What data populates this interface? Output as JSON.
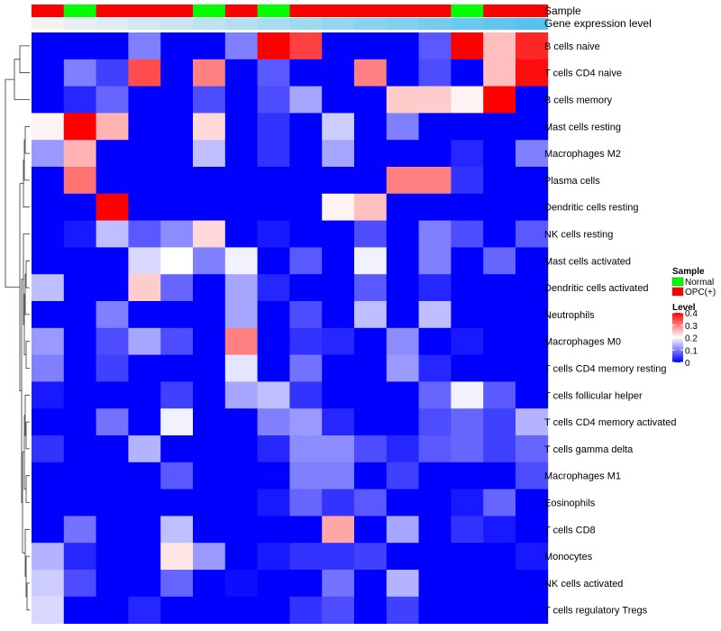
{
  "chart_data": {
    "type": "heatmap",
    "title": "",
    "row_labels": [
      "B cells naive",
      "T cells CD4 naive",
      "B cells memory",
      "Mast cells resting",
      "Macrophages M2",
      "Plasma cells",
      "Dendritic cells resting",
      "NK cells resting",
      "Mast cells activated",
      "Dendritic cells activated",
      "Neutrophils",
      "Macrophages M0",
      "T cells CD4 memory resting",
      "T cells follicular helper",
      "T cells CD4 memory activated",
      "T cells gamma delta",
      "Macrophages M1",
      "Eosinophils",
      "T cells CD8",
      "Monocytes",
      "NK cells activated",
      "T cells regulatory  Tregs"
    ],
    "column_annotations": {
      "sample_track_label": "Sample",
      "expression_track_label": "Gene expression level",
      "sample": [
        "OPC(+)",
        "Normal",
        "OPC(+)",
        "OPC(+)",
        "OPC(+)",
        "Normal",
        "OPC(+)",
        "Normal",
        "OPC(+)",
        "OPC(+)",
        "OPC(+)",
        "OPC(+)",
        "OPC(+)",
        "Normal",
        "OPC(+)",
        "OPC(+)"
      ],
      "gene_expression_level": [
        0.0,
        0.07,
        0.13,
        0.2,
        0.27,
        0.33,
        0.4,
        0.47,
        0.53,
        0.6,
        0.67,
        0.73,
        0.8,
        0.87,
        0.93,
        1.0
      ]
    },
    "values": [
      [
        0.0,
        0.0,
        0.0,
        0.1,
        0.0,
        0.0,
        0.1,
        0.4,
        0.35,
        0.0,
        0.0,
        0.0,
        0.07,
        0.4,
        0.25,
        0.37
      ],
      [
        0.0,
        0.1,
        0.05,
        0.34,
        0.0,
        0.3,
        0.0,
        0.07,
        0.0,
        0.0,
        0.3,
        0.0,
        0.06,
        0.0,
        0.25,
        0.39
      ],
      [
        0.0,
        0.03,
        0.08,
        0.0,
        0.0,
        0.06,
        0.0,
        0.06,
        0.13,
        0.0,
        0.0,
        0.24,
        0.24,
        0.21,
        0.4,
        0.0
      ],
      [
        0.21,
        0.4,
        0.26,
        0.0,
        0.0,
        0.23,
        0.0,
        0.04,
        0.0,
        0.16,
        0.0,
        0.1,
        0.0,
        0.0,
        0.0,
        0.0
      ],
      [
        0.12,
        0.26,
        0.0,
        0.0,
        0.0,
        0.15,
        0.0,
        0.04,
        0.0,
        0.13,
        0.0,
        0.0,
        0.0,
        0.03,
        0.0,
        0.1
      ],
      [
        0.0,
        0.31,
        0.0,
        0.0,
        0.0,
        0.0,
        0.0,
        0.0,
        0.0,
        0.0,
        0.0,
        0.3,
        0.3,
        0.04,
        0.0,
        0.0
      ],
      [
        0.0,
        0.0,
        0.4,
        0.0,
        0.0,
        0.0,
        0.0,
        0.0,
        0.0,
        0.21,
        0.25,
        0.0,
        0.0,
        0.0,
        0.0,
        0.0
      ],
      [
        0.0,
        0.02,
        0.15,
        0.07,
        0.11,
        0.23,
        0.0,
        0.02,
        0.0,
        0.0,
        0.06,
        0.0,
        0.1,
        0.06,
        0.0,
        0.07
      ],
      [
        0.0,
        0.0,
        0.0,
        0.17,
        0.2,
        0.1,
        0.19,
        0.0,
        0.07,
        0.0,
        0.19,
        0.0,
        0.1,
        0.0,
        0.08,
        0.0
      ],
      [
        0.15,
        0.0,
        0.0,
        0.24,
        0.08,
        0.0,
        0.13,
        0.03,
        0.0,
        0.0,
        0.07,
        0.0,
        0.03,
        0.0,
        0.0,
        0.0
      ],
      [
        0.0,
        0.0,
        0.1,
        0.0,
        0.0,
        0.0,
        0.13,
        0.0,
        0.06,
        0.0,
        0.15,
        0.0,
        0.15,
        0.0,
        0.0,
        0.0
      ],
      [
        0.12,
        0.0,
        0.06,
        0.13,
        0.06,
        0.0,
        0.3,
        0.0,
        0.04,
        0.03,
        0.0,
        0.11,
        0.0,
        0.02,
        0.0,
        0.0
      ],
      [
        0.1,
        0.0,
        0.05,
        0.0,
        0.0,
        0.0,
        0.18,
        0.0,
        0.09,
        0.0,
        0.0,
        0.12,
        0.03,
        0.0,
        0.0,
        0.0
      ],
      [
        0.02,
        0.0,
        0.0,
        0.0,
        0.05,
        0.0,
        0.13,
        0.15,
        0.04,
        0.0,
        0.0,
        0.0,
        0.08,
        0.19,
        0.07,
        0.0
      ],
      [
        0.0,
        0.0,
        0.09,
        0.0,
        0.19,
        0.0,
        0.0,
        0.1,
        0.12,
        0.03,
        0.0,
        0.0,
        0.06,
        0.08,
        0.05,
        0.14
      ],
      [
        0.04,
        0.0,
        0.0,
        0.14,
        0.0,
        0.0,
        0.0,
        0.03,
        0.11,
        0.11,
        0.06,
        0.03,
        0.07,
        0.08,
        0.05,
        0.08
      ],
      [
        0.0,
        0.0,
        0.0,
        0.0,
        0.07,
        0.0,
        0.0,
        0.0,
        0.1,
        0.1,
        0.0,
        0.05,
        0.0,
        0.0,
        0.0,
        0.06
      ],
      [
        0.0,
        0.0,
        0.0,
        0.0,
        0.0,
        0.0,
        0.0,
        0.02,
        0.08,
        0.04,
        0.07,
        0.0,
        0.0,
        0.02,
        0.08,
        0.0
      ],
      [
        0.0,
        0.09,
        0.0,
        0.0,
        0.15,
        0.0,
        0.0,
        0.0,
        0.0,
        0.27,
        0.0,
        0.13,
        0.0,
        0.04,
        0.02,
        0.0
      ],
      [
        0.14,
        0.03,
        0.0,
        0.0,
        0.22,
        0.12,
        0.0,
        0.02,
        0.04,
        0.04,
        0.05,
        0.0,
        0.0,
        0.0,
        0.0,
        0.02
      ],
      [
        0.16,
        0.06,
        0.0,
        0.0,
        0.08,
        0.0,
        0.01,
        0.0,
        0.0,
        0.09,
        0.0,
        0.14,
        0.0,
        0.0,
        0.0,
        0.0
      ],
      [
        0.17,
        0.0,
        0.0,
        0.03,
        0.0,
        0.0,
        0.0,
        0.0,
        0.04,
        0.06,
        0.0,
        0.05,
        0.0,
        0.0,
        0.0,
        0.0
      ]
    ],
    "color_scale": {
      "min": 0,
      "mid": 0.2,
      "max": 0.4,
      "low_color": "#0000ff",
      "mid_color": "#ffffff",
      "high_color": "#ff0000"
    },
    "legend": {
      "sample_title": "Sample",
      "sample_entries": [
        {
          "label": "Normal",
          "color": "#00ff00"
        },
        {
          "label": "OPC(+)",
          "color": "#ff0000"
        }
      ],
      "level_title": "Level",
      "level_ticks": [
        0.4,
        0.3,
        0.2,
        0.1,
        0
      ],
      "level_tick_labels": [
        "0.4",
        "0.3",
        "0.2",
        "0.1",
        "0"
      ]
    },
    "expression_track_colors": {
      "low": "#f2f2f2",
      "high": "#56c3ee"
    },
    "row_dendrogram": true
  }
}
